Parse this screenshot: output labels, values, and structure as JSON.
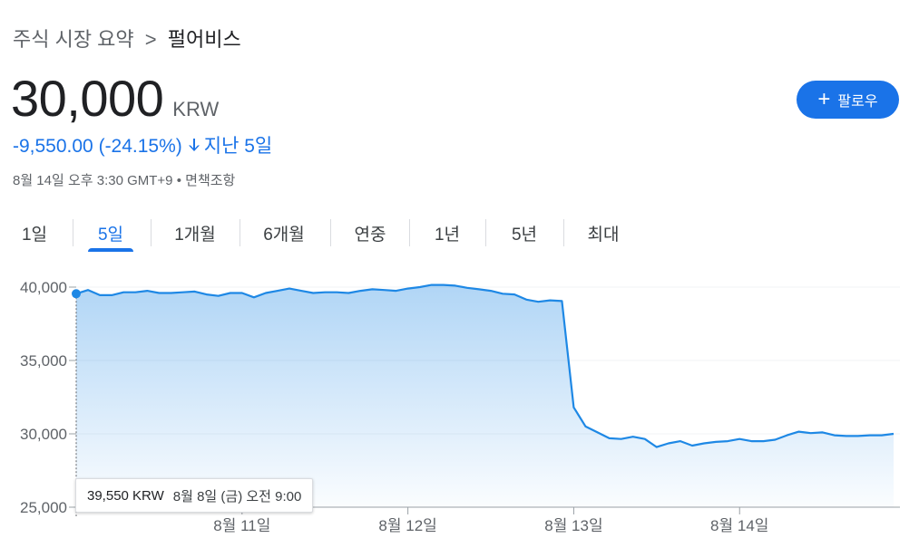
{
  "breadcrumb": {
    "parent": "주식 시장 요약",
    "separator": ">",
    "current": "펄어비스"
  },
  "quote": {
    "price": "30,000",
    "currency": "KRW",
    "change": "-9,550.00 (-24.15%)",
    "arrow": "down-arrow-icon",
    "period": "지난 5일",
    "timestamp": "8월 14일 오후 3:30 GMT+9",
    "bullet": "•",
    "disclaimer": "면책조항"
  },
  "follow_button": {
    "icon": "plus-icon",
    "label": "팔로우"
  },
  "tabs": [
    {
      "label": "1일",
      "active": false
    },
    {
      "label": "5일",
      "active": true
    },
    {
      "label": "1개월",
      "active": false
    },
    {
      "label": "6개월",
      "active": false
    },
    {
      "label": "연중",
      "active": false
    },
    {
      "label": "1년",
      "active": false
    },
    {
      "label": "5년",
      "active": false
    },
    {
      "label": "최대",
      "active": false
    }
  ],
  "tooltip": {
    "price": "39,550 KRW",
    "date": "8월 8일 (금) 오전 9:00"
  },
  "colors": {
    "accent": "#1a73e8",
    "line": "#1e88e5",
    "grid": "#f1f3f4"
  },
  "chart_data": {
    "type": "area",
    "title": "",
    "xlabel": "",
    "ylabel": "",
    "ylim": [
      25000,
      40000
    ],
    "yticks": [
      {
        "value": 40000,
        "label": "40,000"
      },
      {
        "value": 35000,
        "label": "35,000"
      },
      {
        "value": 30000,
        "label": "30,000"
      },
      {
        "value": 25000,
        "label": "25,000"
      }
    ],
    "xticks": [
      {
        "index": 14,
        "label": "8월 11일"
      },
      {
        "index": 28,
        "label": "8월 12일"
      },
      {
        "index": 42,
        "label": "8월 13일"
      },
      {
        "index": 56,
        "label": "8월 14일"
      }
    ],
    "grid": true,
    "baseline": 39550,
    "values": [
      39550,
      39800,
      39450,
      39450,
      39650,
      39650,
      39750,
      39600,
      39600,
      39650,
      39700,
      39500,
      39400,
      39600,
      39600,
      39300,
      39600,
      39750,
      39900,
      39750,
      39600,
      39650,
      39650,
      39600,
      39750,
      39850,
      39800,
      39750,
      39900,
      40000,
      40150,
      40150,
      40100,
      39950,
      39850,
      39750,
      39550,
      39500,
      39150,
      39000,
      39100,
      39050,
      31800,
      30500,
      30100,
      29700,
      29650,
      29800,
      29650,
      29100,
      29350,
      29500,
      29200,
      29350,
      29450,
      29500,
      29650,
      29500,
      29500,
      29600,
      29900,
      30150,
      30050,
      30100,
      29900,
      29850,
      29850,
      29900,
      29900,
      30000
    ]
  }
}
